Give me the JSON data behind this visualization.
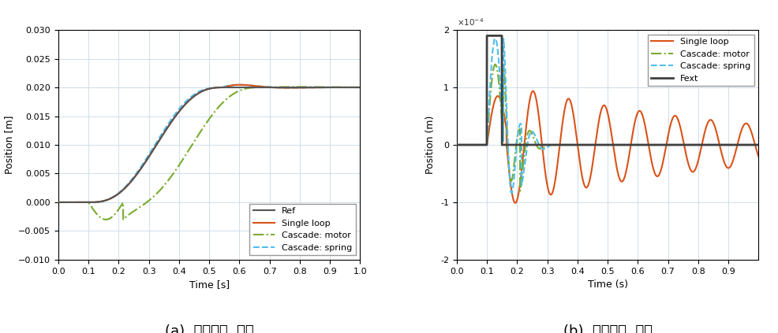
{
  "fig_width": 9.86,
  "fig_height": 4.23,
  "dpi": 100,
  "plot_a": {
    "caption": "(a)  지령추종  성능",
    "xlabel": "Time [s]",
    "ylabel": "Position [m]",
    "xlim": [
      0,
      1
    ],
    "ylim": [
      -0.01,
      0.03
    ],
    "yticks": [
      -0.01,
      -0.005,
      0,
      0.005,
      0.01,
      0.015,
      0.02,
      0.025,
      0.03
    ],
    "xticks": [
      0,
      0.1,
      0.2,
      0.3,
      0.4,
      0.5,
      0.6,
      0.7,
      0.8,
      0.9,
      1.0
    ],
    "legend": [
      "Ref",
      "Single loop",
      "Cascade: motor",
      "Cascade: spring"
    ],
    "colors": {
      "Ref": "#555555",
      "Single loop": "#D95319",
      "Cascade: motor": "#77AC30",
      "Cascade: spring": "#4DBEEE"
    },
    "linestyles": {
      "Ref": "-",
      "Single loop": "-",
      "Cascade: motor": "-.",
      "Cascade: spring": "--"
    },
    "linewidths": {
      "Ref": 1.5,
      "Single loop": 1.5,
      "Cascade: motor": 1.5,
      "Cascade: spring": 1.5
    }
  },
  "plot_b": {
    "caption": "(b)  외란제거  성능",
    "xlabel": "Time (s)",
    "ylabel": "Position (m)",
    "xlim": [
      0,
      1.0
    ],
    "ylim_scale": 2.0,
    "xticks": [
      0,
      0.1,
      0.2,
      0.3,
      0.4,
      0.5,
      0.6,
      0.7,
      0.8,
      0.9
    ],
    "legend": [
      "Single loop",
      "Cascade: motor",
      "Cascade: spring",
      "Fext"
    ],
    "colors": {
      "Single loop": "#D95319",
      "Cascade: motor": "#77AC30",
      "Cascade: spring": "#4DBEEE",
      "Fext": "#404040"
    },
    "linestyles": {
      "Single loop": "-",
      "Cascade: motor": "-.",
      "Cascade: spring": "--",
      "Fext": "-"
    },
    "linewidths": {
      "Single loop": 1.5,
      "Cascade: motor": 1.5,
      "Cascade: spring": 1.5,
      "Fext": 2.0
    }
  },
  "background_color": "#ffffff",
  "grid_color": "#c8d8e8",
  "caption_fontsize": 13,
  "tick_fontsize": 8,
  "label_fontsize": 9,
  "legend_fontsize": 8
}
